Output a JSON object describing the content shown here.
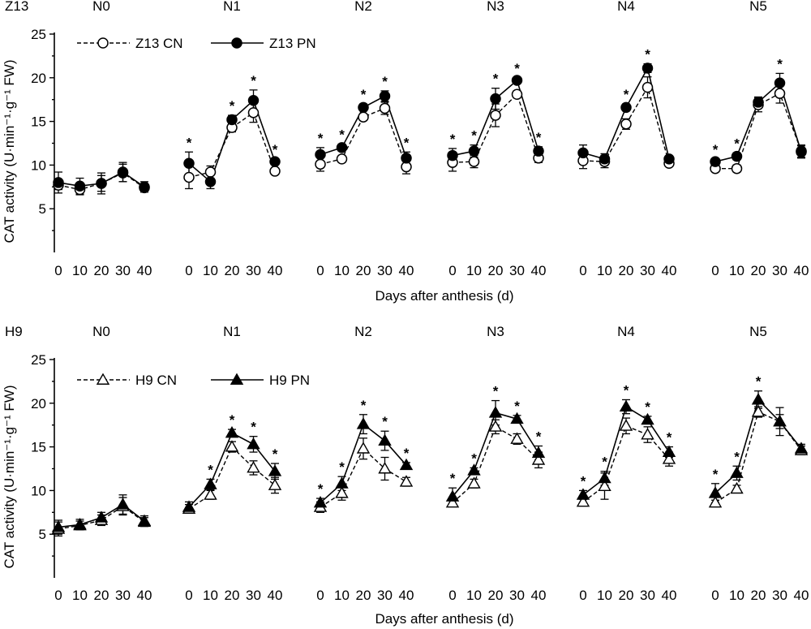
{
  "chart_data": [
    {
      "type": "line",
      "panel_label": "Z13",
      "ylabel": "CAT activity (U·min⁻¹·g⁻¹ FW)",
      "xlabel": "Days after anthesis (d)",
      "ylim": [
        0,
        25
      ],
      "yticks": [
        5,
        10,
        15,
        20,
        25
      ],
      "days": [
        0,
        10,
        20,
        30,
        40
      ],
      "groups": [
        "N0",
        "N1",
        "N2",
        "N3",
        "N4",
        "N5"
      ],
      "series": [
        {
          "name": "Z13 CN",
          "marker": "circle-open",
          "line": "dashed",
          "values": [
            [
              7.7,
              7.2,
              7.9,
              9.1,
              7.4
            ],
            [
              8.6,
              9.2,
              14.3,
              16.0,
              9.3
            ],
            [
              10.1,
              10.7,
              15.5,
              16.5,
              9.8
            ],
            [
              10.3,
              10.4,
              15.7,
              18.1,
              10.8
            ],
            [
              10.5,
              10.4,
              14.7,
              18.9,
              10.2
            ],
            [
              9.6,
              9.6,
              16.9,
              18.2,
              11.6
            ]
          ],
          "errors": [
            [
              0.5,
              0.6,
              0.9,
              1.0,
              0.4
            ],
            [
              1.3,
              0.7,
              0.5,
              1.1,
              0.3
            ],
            [
              0.8,
              0.4,
              0.3,
              0.7,
              0.8
            ],
            [
              1.0,
              0.7,
              1.3,
              0.4,
              0.5
            ],
            [
              0.9,
              0.7,
              0.6,
              1.2,
              0.3
            ],
            [
              0.3,
              0.4,
              0.8,
              1.1,
              0.7
            ]
          ]
        },
        {
          "name": "Z13 PN",
          "marker": "circle-filled",
          "line": "solid",
          "values": [
            [
              8.0,
              7.6,
              7.9,
              9.2,
              7.5
            ],
            [
              10.2,
              8.1,
              15.2,
              17.4,
              10.4
            ],
            [
              11.2,
              12.0,
              16.6,
              17.9,
              10.8
            ],
            [
              11.1,
              11.6,
              17.6,
              19.7,
              11.6
            ],
            [
              11.4,
              10.7,
              16.6,
              21.1,
              10.7
            ],
            [
              10.4,
              11.0,
              17.2,
              19.4,
              11.5
            ]
          ],
          "errors": [
            [
              1.2,
              0.9,
              1.2,
              1.1,
              0.6
            ],
            [
              1.3,
              0.8,
              0.5,
              1.2,
              0.3
            ],
            [
              0.8,
              0.4,
              0.4,
              0.6,
              0.7
            ],
            [
              0.8,
              0.7,
              1.2,
              0.3,
              0.5
            ],
            [
              0.9,
              0.6,
              0.4,
              0.5,
              0.3
            ],
            [
              0.3,
              0.4,
              0.6,
              1.1,
              0.7
            ]
          ]
        }
      ],
      "significance": [
        [
          false,
          false,
          false,
          false,
          false
        ],
        [
          true,
          false,
          true,
          true,
          true
        ],
        [
          true,
          true,
          true,
          true,
          true
        ],
        [
          true,
          true,
          true,
          true,
          true
        ],
        [
          false,
          false,
          true,
          true,
          false
        ],
        [
          true,
          true,
          false,
          true,
          false
        ]
      ],
      "significance_mark": "*",
      "legend_position": "top-left"
    },
    {
      "type": "line",
      "panel_label": "H9",
      "ylabel": "CAT activity (U·min⁻¹·g⁻¹ FW)",
      "xlabel": "Days after anthesis (d)",
      "ylim": [
        0,
        25
      ],
      "yticks": [
        5,
        10,
        15,
        20,
        25
      ],
      "days": [
        0,
        10,
        20,
        30,
        40
      ],
      "groups": [
        "N0",
        "N1",
        "N2",
        "N3",
        "N4",
        "N5"
      ],
      "series": [
        {
          "name": "H9 CN",
          "marker": "triangle-open",
          "line": "dashed",
          "values": [
            [
              5.6,
              6.0,
              6.6,
              8.2,
              6.4
            ],
            [
              7.9,
              9.5,
              15.0,
              12.6,
              10.6
            ],
            [
              8.1,
              9.7,
              14.8,
              12.5,
              11.0
            ],
            [
              8.6,
              10.8,
              17.3,
              15.9,
              13.5
            ],
            [
              8.7,
              10.5,
              17.4,
              16.4,
              13.6
            ],
            [
              8.6,
              10.2,
              19.0,
              17.9,
              14.6
            ]
          ],
          "errors": [
            [
              0.8,
              0.5,
              0.6,
              1.0,
              0.5
            ],
            [
              0.5,
              0.5,
              0.6,
              0.8,
              0.9
            ],
            [
              0.6,
              0.8,
              1.2,
              1.3,
              0.5
            ],
            [
              0.3,
              0.5,
              0.8,
              0.6,
              0.9
            ],
            [
              0.4,
              1.5,
              0.9,
              0.9,
              0.8
            ],
            [
              0.3,
              0.4,
              0.6,
              0.8,
              0.5
            ]
          ]
        },
        {
          "name": "H9 PN",
          "marker": "triangle-filled",
          "line": "solid",
          "values": [
            [
              5.8,
              6.1,
              6.9,
              8.4,
              6.5
            ],
            [
              8.1,
              10.7,
              16.6,
              15.3,
              12.2
            ],
            [
              8.6,
              10.8,
              17.6,
              15.7,
              12.9
            ],
            [
              9.3,
              12.3,
              18.9,
              18.2,
              14.3
            ],
            [
              9.5,
              11.4,
              19.6,
              18.1,
              14.4
            ],
            [
              9.7,
              12.0,
              20.4,
              17.9,
              14.8
            ]
          ],
          "errors": [
            [
              0.8,
              0.6,
              0.6,
              1.1,
              0.6
            ],
            [
              0.6,
              0.6,
              0.4,
              0.9,
              0.9
            ],
            [
              0.5,
              0.8,
              1.1,
              1.1,
              0.3
            ],
            [
              1.0,
              0.3,
              1.4,
              0.4,
              0.8
            ],
            [
              0.5,
              0.8,
              0.8,
              0.4,
              0.6
            ],
            [
              1.1,
              0.8,
              1.0,
              1.6,
              0.5
            ]
          ]
        }
      ],
      "significance": [
        [
          false,
          false,
          false,
          false,
          false
        ],
        [
          false,
          true,
          true,
          true,
          true
        ],
        [
          true,
          true,
          true,
          true,
          true
        ],
        [
          true,
          true,
          true,
          true,
          true
        ],
        [
          true,
          true,
          true,
          true,
          true
        ],
        [
          true,
          true,
          true,
          false,
          false
        ]
      ],
      "significance_mark": "*",
      "legend_position": "top-left"
    }
  ]
}
